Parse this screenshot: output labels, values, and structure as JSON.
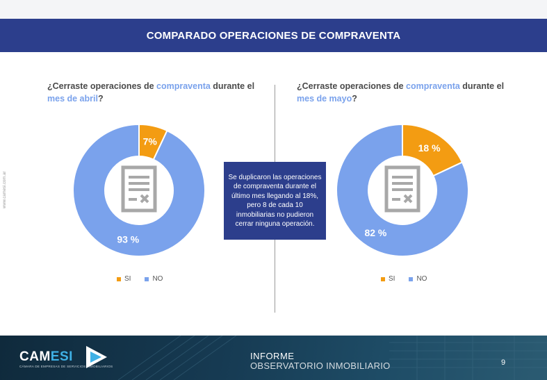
{
  "header": {
    "title": "COMPARADO OPERACIONES DE COMPRAVENTA"
  },
  "sidebar": {
    "website": "www.camesi.com.ar"
  },
  "note": "Se duplicaron las operaciones de compraventa durante el último mes llegando al 18%, pero 8 de cada 10 inmobiliarias no pudieron cerrar ninguna operación.",
  "footer": {
    "logo_main": "CAM",
    "logo_accent": "ESI",
    "logo_tagline": "CÁMARA DE EMPRESAS DE SERVICIOS INMOBILIARIOS",
    "report_title": "INFORME",
    "report_subtitle": "OBSERVATORIO INMOBILIARIO",
    "page_number": "9"
  },
  "colors": {
    "si": "#f39c12",
    "no": "#7aa2ec",
    "title_bar": "#2c3e8c"
  },
  "icons": {
    "center": "document-icon"
  },
  "chart_data": [
    {
      "type": "pie",
      "title_parts": {
        "prefix": "¿Cerraste operaciones de ",
        "highlight1": "compraventa",
        "middle": " durante el ",
        "highlight2": "mes de abril",
        "suffix": "?"
      },
      "categories": [
        "SI",
        "NO"
      ],
      "values": [
        7,
        93
      ],
      "labels": [
        "7%",
        "93 %"
      ],
      "legend": "bottom"
    },
    {
      "type": "pie",
      "title_parts": {
        "prefix": "¿Cerraste operaciones de ",
        "highlight1": "compraventa",
        "middle": " durante el ",
        "highlight2": "mes de mayo",
        "suffix": "?"
      },
      "categories": [
        "SI",
        "NO"
      ],
      "values": [
        18,
        82
      ],
      "labels": [
        "18 %",
        "82 %"
      ],
      "legend": "bottom"
    }
  ]
}
